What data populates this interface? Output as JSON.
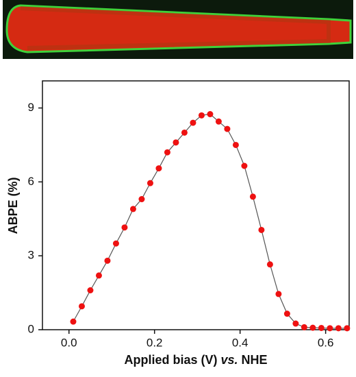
{
  "chart_data": {
    "type": "line",
    "xlabel": [
      "Applied bias (V)",
      "vs.",
      "NHE"
    ],
    "ylabel": "ABPE (%)",
    "x": [
      0.01,
      0.03,
      0.05,
      0.07,
      0.09,
      0.11,
      0.13,
      0.15,
      0.17,
      0.19,
      0.21,
      0.23,
      0.25,
      0.27,
      0.29,
      0.31,
      0.33,
      0.35,
      0.37,
      0.39,
      0.41,
      0.43,
      0.45,
      0.47,
      0.49,
      0.51,
      0.53,
      0.55,
      0.57,
      0.59,
      0.61,
      0.63,
      0.65
    ],
    "series": [
      {
        "color": "#ee1111",
        "line_color": "#555555",
        "values": [
          0.33,
          0.95,
          1.6,
          2.2,
          2.8,
          3.5,
          4.15,
          4.9,
          5.3,
          5.95,
          6.55,
          7.2,
          7.6,
          8.0,
          8.4,
          8.7,
          8.75,
          8.45,
          8.15,
          7.5,
          6.65,
          5.4,
          4.05,
          2.65,
          1.45,
          0.65,
          0.25,
          0.1,
          0.08,
          0.07,
          0.06,
          0.06,
          0.06
        ]
      }
    ],
    "xlim": [
      -0.062,
      0.655
    ],
    "ylim": [
      0,
      10.1
    ],
    "xticks": [
      {
        "value": 0,
        "label": "0.0"
      },
      0.2,
      0.4,
      0.6
    ],
    "yticks": [
      0,
      3,
      6,
      9
    ]
  }
}
